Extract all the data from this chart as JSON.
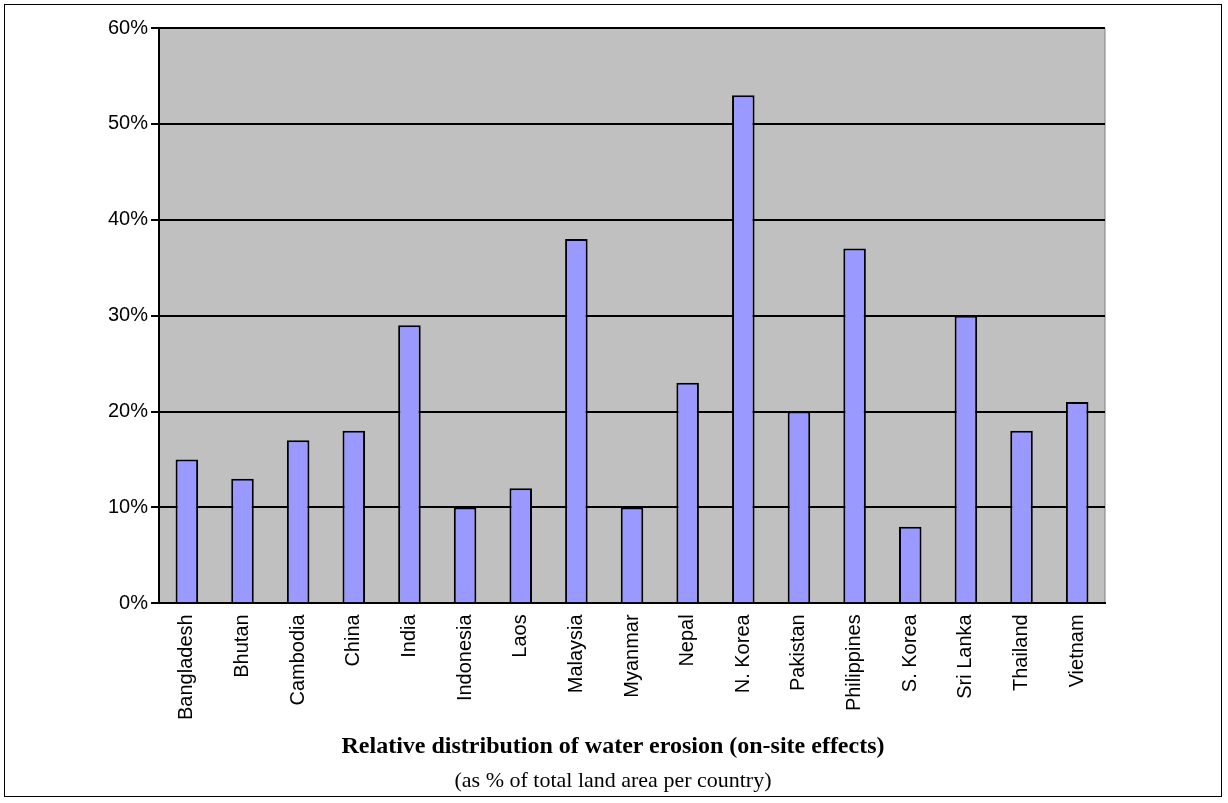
{
  "chart_data": {
    "type": "bar",
    "title": "Relative distribution of water erosion (on-site effects)",
    "subtitle": "(as % of total land area per country)",
    "categories": [
      "Bangladesh",
      "Bhutan",
      "Cambodia",
      "China",
      "India",
      "Indonesia",
      "Laos",
      "Malaysia",
      "Myanmar",
      "Nepal",
      "N. Korea",
      "Pakistan",
      "Philippines",
      "S. Korea",
      "Sri Lanka",
      "Thailand",
      "Vietnam"
    ],
    "values": [
      15,
      13,
      17,
      18,
      29,
      10,
      12,
      38,
      10,
      23,
      53,
      20,
      37,
      8,
      30,
      18,
      21
    ],
    "color": "#9999ff",
    "ylim": [
      0,
      60
    ],
    "yticks": [
      {
        "value": 0,
        "label": "0%"
      },
      {
        "value": 10,
        "label": "10%"
      },
      {
        "value": 20,
        "label": "20%"
      },
      {
        "value": 30,
        "label": "30%"
      },
      {
        "value": 40,
        "label": "40%"
      },
      {
        "value": 50,
        "label": "50%"
      },
      {
        "value": 60,
        "label": "60%"
      }
    ],
    "grid": "y",
    "legend": false
  }
}
